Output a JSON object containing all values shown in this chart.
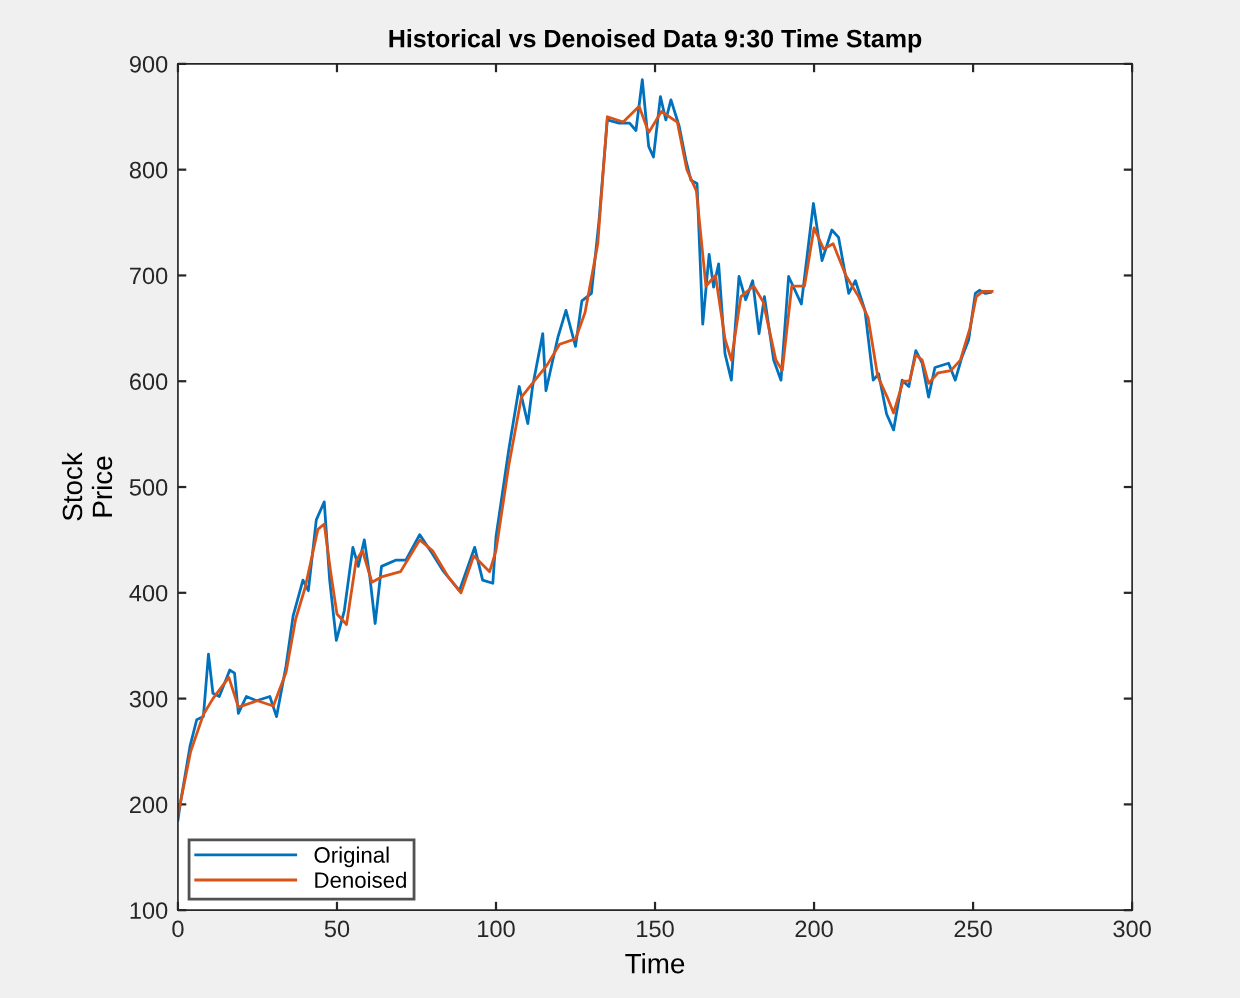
{
  "chart_data": {
    "type": "line",
    "title": "Historical vs Denoised Data 9:30 Time Stamp",
    "xlabel": "Time",
    "ylabel": "Stock\nPrice",
    "xlim": [
      0,
      300
    ],
    "xticks": [
      0,
      50,
      100,
      150,
      200,
      250,
      300
    ],
    "ylim": [
      100,
      900
    ],
    "yticks": [
      100,
      200,
      300,
      400,
      500,
      600,
      700,
      800,
      900
    ],
    "grid": false,
    "legend": "bottom left",
    "line_style": "solid",
    "marker": "none",
    "series": [
      {
        "name": "Original",
        "color": "#0072bd",
        "x": [
          0,
          0.6,
          3.8,
          5.9,
          8,
          9.6,
          11,
          13,
          16.3,
          17.8,
          19,
          21.5,
          24.7,
          28.9,
          31,
          34,
          36.2,
          39.3,
          41,
          43.5,
          46,
          47.7,
          49.8,
          52.3,
          55,
          56.7,
          58.6,
          60.3,
          62,
          64,
          68.6,
          71.7,
          76,
          80,
          83.3,
          88.5,
          93.3,
          95.8,
          99,
          100,
          102,
          104,
          107.3,
          110,
          111.5,
          114.7,
          115.7,
          119.5,
          122,
          125,
          127,
          130,
          132.4,
          135,
          138.7,
          142,
          144,
          146,
          148,
          149.5,
          151.7,
          153.4,
          155,
          157.6,
          159.7,
          161.3,
          163.2,
          165,
          167,
          168.4,
          170,
          172,
          174,
          176.4,
          178.5,
          180.7,
          182.7,
          184.4,
          187.3,
          189.6,
          192,
          196,
          199.8,
          202.5,
          205.6,
          207.7,
          210.9,
          213,
          216,
          218.6,
          220.3,
          222.8,
          225,
          227.7,
          229.8,
          232,
          234,
          236,
          238,
          242.3,
          244.4,
          246.5,
          248.6,
          250.7,
          252,
          253.9,
          255.5
        ],
        "values": [
          185,
          198,
          255,
          280,
          283,
          342,
          305,
          302,
          327,
          324,
          286,
          302,
          298,
          302,
          283,
          331,
          378,
          412,
          402,
          469,
          486,
          412,
          355,
          383,
          443,
          425,
          450,
          416,
          371,
          425,
          431,
          431,
          455,
          437,
          421,
          402,
          443,
          412,
          409,
          453,
          494,
          535,
          595,
          560,
          595,
          645,
          591,
          642,
          667,
          633,
          676,
          683,
          752,
          847,
          844,
          844,
          837,
          885,
          822,
          812,
          869,
          847,
          866,
          841,
          809,
          790,
          787,
          654,
          720,
          689,
          711,
          626,
          601,
          699,
          677,
          695,
          645,
          680,
          620,
          601,
          699,
          673,
          768,
          714,
          743,
          736,
          683,
          695,
          667,
          601,
          607,
          569,
          554,
          601,
          595,
          629,
          617,
          585,
          613,
          617,
          601,
          623,
          639,
          683,
          686,
          683,
          684
        ]
      },
      {
        "name": "Denoised",
        "color": "#d95319",
        "x": [
          0,
          4,
          8,
          11,
          16,
          19,
          25,
          30,
          34,
          37,
          40,
          44,
          46,
          48,
          50,
          53,
          56,
          58,
          61,
          64,
          70,
          76,
          80,
          85,
          89,
          93,
          98,
          100,
          104,
          108,
          112,
          116,
          120,
          125,
          128,
          132,
          135,
          140,
          145,
          148,
          152,
          157,
          160,
          163,
          166,
          169,
          172,
          174,
          177,
          181,
          184,
          188,
          190,
          193,
          197,
          200,
          203,
          206,
          210,
          214,
          217,
          220,
          223,
          225,
          228,
          230,
          232,
          234,
          236,
          239,
          243,
          246,
          249,
          251,
          253,
          256
        ],
        "values": [
          190,
          250,
          285,
          300,
          320,
          292,
          298,
          293,
          325,
          375,
          405,
          460,
          465,
          420,
          380,
          370,
          430,
          440,
          410,
          415,
          420,
          450,
          440,
          415,
          400,
          435,
          420,
          440,
          520,
          585,
          600,
          615,
          635,
          640,
          665,
          730,
          850,
          845,
          860,
          835,
          855,
          845,
          800,
          780,
          690,
          700,
          640,
          620,
          680,
          690,
          675,
          620,
          610,
          690,
          690,
          745,
          725,
          730,
          700,
          680,
          660,
          605,
          585,
          570,
          600,
          600,
          625,
          620,
          598,
          608,
          610,
          620,
          650,
          680,
          685,
          685
        ]
      }
    ]
  }
}
